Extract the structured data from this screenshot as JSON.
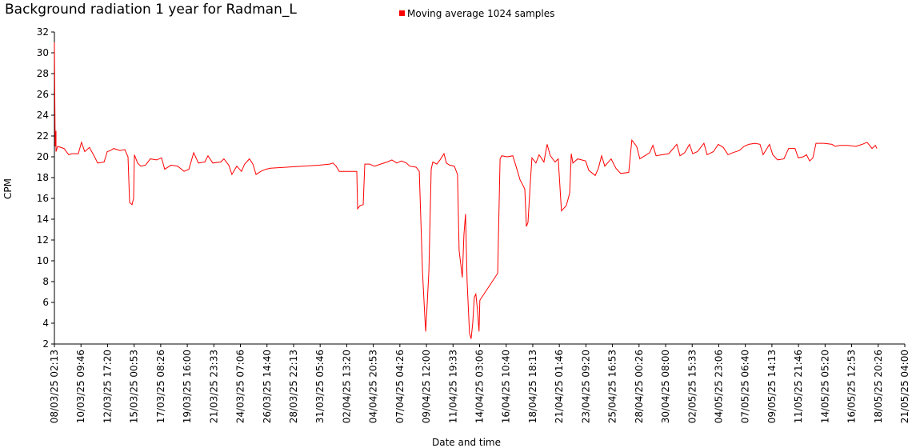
{
  "chart_data": {
    "type": "line",
    "title": "Background radiation 1 year for Radman_L",
    "xlabel": "Date and time",
    "ylabel": "CPM",
    "ylim": [
      2,
      32
    ],
    "yticks": [
      2,
      4,
      6,
      8,
      10,
      12,
      14,
      16,
      18,
      20,
      22,
      24,
      26,
      28,
      30,
      32
    ],
    "xlim": [
      0,
      32
    ],
    "xticks": [
      {
        "value": 0,
        "label": "08/03/25 02:13"
      },
      {
        "value": 1,
        "label": "10/03/25 09:46"
      },
      {
        "value": 2,
        "label": "12/03/25 17:20"
      },
      {
        "value": 3,
        "label": "15/03/25 00:53"
      },
      {
        "value": 4,
        "label": "17/03/25 08:26"
      },
      {
        "value": 5,
        "label": "19/03/25 16:00"
      },
      {
        "value": 6,
        "label": "21/03/25 23:33"
      },
      {
        "value": 7,
        "label": "24/03/25 07:06"
      },
      {
        "value": 8,
        "label": "26/03/25 14:40"
      },
      {
        "value": 9,
        "label": "28/03/25 22:13"
      },
      {
        "value": 10,
        "label": "31/03/25 05:46"
      },
      {
        "value": 11,
        "label": "02/04/25 13:20"
      },
      {
        "value": 12,
        "label": "04/04/25 20:53"
      },
      {
        "value": 13,
        "label": "07/04/25 04:26"
      },
      {
        "value": 14,
        "label": "09/04/25 12:00"
      },
      {
        "value": 15,
        "label": "11/04/25 19:33"
      },
      {
        "value": 16,
        "label": "14/04/25 03:06"
      },
      {
        "value": 17,
        "label": "16/04/25 10:40"
      },
      {
        "value": 18,
        "label": "18/04/25 18:13"
      },
      {
        "value": 19,
        "label": "21/04/25 01:46"
      },
      {
        "value": 20,
        "label": "23/04/25 09:20"
      },
      {
        "value": 21,
        "label": "25/04/25 16:53"
      },
      {
        "value": 22,
        "label": "28/04/25 00:26"
      },
      {
        "value": 23,
        "label": "30/04/25 08:00"
      },
      {
        "value": 24,
        "label": "02/05/25 15:33"
      },
      {
        "value": 25,
        "label": "04/05/25 23:06"
      },
      {
        "value": 26,
        "label": "07/05/25 06:40"
      },
      {
        "value": 27,
        "label": "09/05/25 14:13"
      },
      {
        "value": 28,
        "label": "11/05/25 21:46"
      },
      {
        "value": 29,
        "label": "14/05/25 05:20"
      },
      {
        "value": 30,
        "label": "16/05/25 12:53"
      },
      {
        "value": 31,
        "label": "18/05/25 20:26"
      },
      {
        "value": 32,
        "label": "21/05/25 04:00"
      }
    ],
    "x": [
      0,
      0.03,
      0.06,
      0.06,
      0.12,
      0.36,
      0.54,
      0.66,
      0.9,
      1.02,
      1.14,
      1.32,
      1.51,
      1.63,
      1.87,
      1.99,
      2.11,
      2.23,
      2.47,
      2.65,
      2.77,
      2.83,
      2.92,
      2.98,
      3.01,
      3.13,
      3.25,
      3.43,
      3.61,
      3.85,
      4.03,
      4.15,
      4.39,
      4.64,
      4.88,
      5.06,
      5.24,
      5.42,
      5.66,
      5.78,
      5.96,
      6.26,
      6.38,
      6.56,
      6.68,
      6.86,
      7.04,
      7.16,
      7.34,
      7.47,
      7.59,
      7.77,
      7.95,
      8.13,
      9.99,
      10.36,
      10.48,
      10.6,
      10.72,
      11.2,
      11.38,
      11.41,
      11.5,
      11.62,
      11.68,
      11.86,
      12.04,
      12.28,
      12.52,
      12.7,
      12.88,
      13.06,
      13.25,
      13.37,
      13.61,
      13.73,
      13.85,
      13.94,
      13.97,
      14.03,
      14.09,
      14.18,
      14.24,
      14.39,
      14.51,
      14.66,
      14.75,
      14.87,
      15.05,
      15.17,
      15.23,
      15.35,
      15.41,
      15.47,
      15.53,
      15.62,
      15.68,
      15.74,
      15.8,
      15.86,
      15.92,
      15.98,
      16.01,
      16.68,
      16.77,
      16.83,
      17.04,
      17.25,
      17.37,
      17.52,
      17.7,
      17.76,
      17.82,
      17.91,
      17.97,
      18.12,
      18.24,
      18.42,
      18.54,
      18.66,
      18.84,
      18.96,
      19.08,
      19.26,
      19.39,
      19.45,
      19.51,
      19.69,
      19.99,
      20.11,
      20.35,
      20.47,
      20.59,
      20.71,
      20.95,
      21.13,
      21.31,
      21.61,
      21.73,
      21.91,
      22.03,
      22.22,
      22.4,
      22.52,
      22.64,
      22.88,
      23.12,
      23.42,
      23.54,
      23.72,
      23.9,
      24.02,
      24.2,
      24.44,
      24.56,
      24.8,
      24.98,
      25.17,
      25.35,
      25.53,
      25.77,
      25.95,
      26.13,
      26.37,
      26.55,
      26.67,
      26.91,
      27.03,
      27.21,
      27.45,
      27.63,
      27.87,
      27.99,
      28.18,
      28.3,
      28.42,
      28.54,
      28.66,
      28.96,
      29.26,
      29.38,
      29.56,
      29.86,
      30.16,
      30.4,
      30.58,
      30.77,
      30.89,
      30.95
    ],
    "series": [
      {
        "name": "Moving average 1024 samples",
        "color": "#ff0000",
        "values": [
          31,
          21,
          22.5,
          20.5,
          21,
          20.8,
          20.2,
          20.3,
          20.3,
          21.4,
          20.5,
          20.9,
          20,
          19.4,
          19.5,
          20.5,
          20.6,
          20.8,
          20.6,
          20.7,
          20,
          15.6,
          15.4,
          16,
          20.2,
          19.4,
          19.1,
          19.2,
          19.8,
          19.7,
          19.9,
          18.8,
          19.2,
          19.1,
          18.6,
          18.8,
          20.4,
          19.4,
          19.5,
          20.1,
          19.4,
          19.5,
          19.8,
          19.2,
          18.3,
          19.1,
          18.6,
          19.3,
          19.8,
          19.3,
          18.3,
          18.6,
          18.8,
          18.9,
          19.2,
          19.3,
          19.4,
          19.1,
          18.6,
          18.6,
          18.6,
          15,
          15.3,
          15.4,
          19.3,
          19.3,
          19.1,
          19.3,
          19.5,
          19.7,
          19.4,
          19.6,
          19.4,
          19.1,
          19,
          18.6,
          9,
          4.5,
          3.2,
          6,
          9,
          18.8,
          19.5,
          19.3,
          19.7,
          20.3,
          19.4,
          19.2,
          19.1,
          18.3,
          11,
          8.4,
          12.5,
          14.5,
          8,
          3,
          2.5,
          4,
          6.5,
          6.8,
          5.3,
          3.2,
          6.2,
          8.8,
          19.8,
          20.1,
          20,
          20.1,
          19.1,
          17.8,
          16.9,
          13.3,
          13.7,
          17.5,
          19.9,
          19.4,
          20.2,
          19.5,
          21.2,
          20.1,
          19.5,
          19.8,
          14.8,
          15.3,
          16.5,
          20.3,
          19.4,
          19.8,
          19.6,
          18.7,
          18.2,
          18.9,
          20.1,
          19.1,
          19.8,
          18.9,
          18.4,
          18.5,
          21.6,
          21,
          19.8,
          20.1,
          20.4,
          21.1,
          20.1,
          20.2,
          20.3,
          21.2,
          20.1,
          20.4,
          21.2,
          20.3,
          20.5,
          21.3,
          20.2,
          20.5,
          21.2,
          20.9,
          20.2,
          20.4,
          20.6,
          21,
          21.2,
          21.3,
          21.2,
          20.2,
          21.2,
          20.2,
          19.7,
          19.8,
          20.8,
          20.8,
          19.9,
          20,
          20.2,
          19.6,
          19.9,
          21.3,
          21.3,
          21.2,
          21,
          21.1,
          21.1,
          21,
          21.2,
          21.4,
          20.8,
          21.1,
          20.8
        ]
      }
    ]
  }
}
